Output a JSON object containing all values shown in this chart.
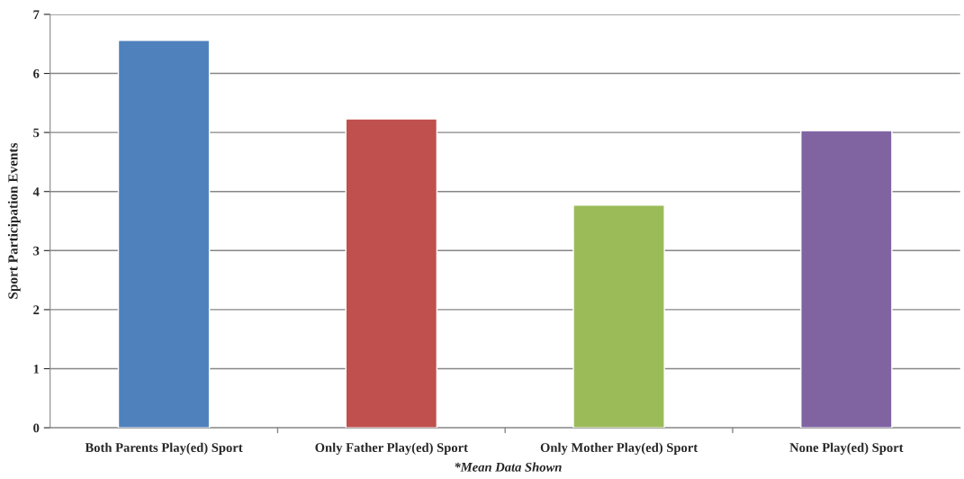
{
  "chart_data": {
    "type": "bar",
    "categories": [
      "Both Parents Play(ed) Sport",
      "Only Father Play(ed) Sport",
      "Only Mother Play(ed) Sport",
      "None Play(ed) Sport"
    ],
    "values": [
      6.56,
      5.23,
      3.77,
      5.03
    ],
    "colors": [
      "#4f81bd",
      "#c0504d",
      "#9bbb59",
      "#8064a2"
    ],
    "ylabel": "Sport Participation Events",
    "ylim": [
      0,
      7
    ],
    "yticks": [
      0,
      1,
      2,
      3,
      4,
      5,
      6,
      7
    ],
    "grid": "y",
    "annotations": [
      "*Mean Data Shown"
    ]
  }
}
